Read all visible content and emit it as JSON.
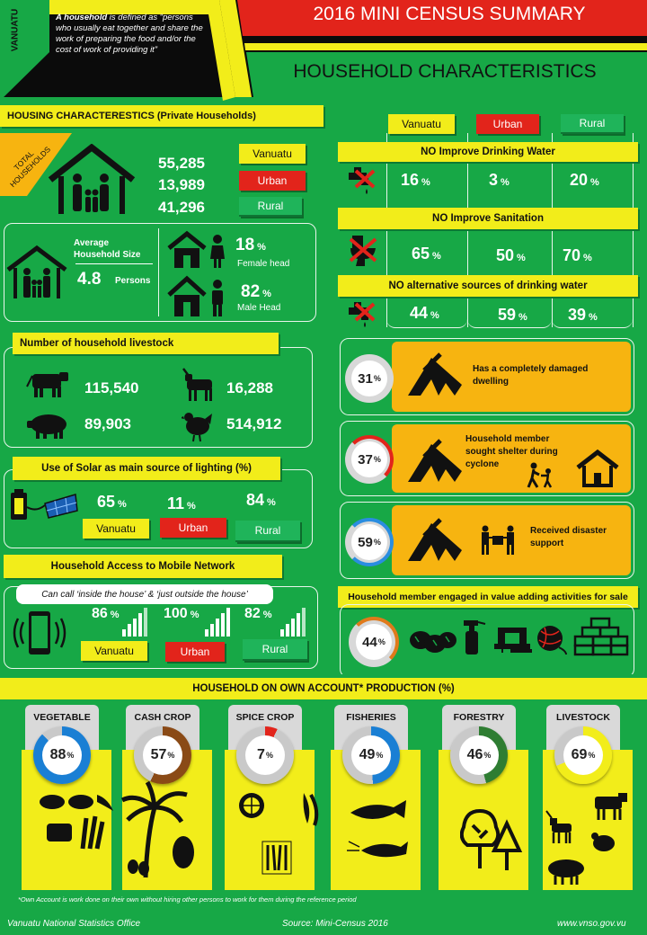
{
  "header": {
    "country_tag": "VANUATU",
    "definition_bold": "A household",
    "definition_rest": " is defined as “persons who usually eat together and share the work of preparing the food and/or the cost of work of providing it”",
    "title": "2016 MINI CENSUS SUMMARY",
    "subtitle": "HOUSEHOLD CHARACTERISTICS"
  },
  "housing": {
    "title": "HOUSING CHARACTERESTICS  (Private Households)",
    "total_label": "TOTAL HOUSEHOLDS",
    "totals": [
      {
        "value": "55,285",
        "label": "Vanuatu"
      },
      {
        "value": "13,989",
        "label": "Urban"
      },
      {
        "value": "41,296",
        "label": "Rural"
      }
    ],
    "avg_label": "Average Household Size",
    "avg_value": "4.8",
    "avg_unit": "Persons",
    "female_pct": "18",
    "female_label": "Female head",
    "male_pct": "82",
    "male_label": "Male Head"
  },
  "livestock": {
    "title": "Number of household livestock",
    "items": [
      {
        "icon": "cow-icon",
        "value": "115,540"
      },
      {
        "icon": "goat-icon",
        "value": "16,288"
      },
      {
        "icon": "pig-icon",
        "value": "89,903"
      },
      {
        "icon": "chicken-icon",
        "value": "514,912"
      }
    ]
  },
  "solar": {
    "title": "Use of Solar as main source of lighting (%)",
    "values": [
      {
        "value": "65",
        "label": "Vanuatu"
      },
      {
        "value": "11",
        "label": "Urban"
      },
      {
        "value": "84",
        "label": "Rural"
      }
    ]
  },
  "mobile": {
    "title": "Household Access to Mobile Network",
    "note": "Can call ‘inside the house’ & ‘just outside the house’",
    "values": [
      {
        "value": "86",
        "label": "Vanuatu"
      },
      {
        "value": "100",
        "label": "Urban"
      },
      {
        "value": "82",
        "label": "Rural"
      }
    ]
  },
  "legend": {
    "vanuatu": "Vanuatu",
    "urban": "Urban",
    "rural": "Rural"
  },
  "water": [
    {
      "title": "NO Improve Drinking Water",
      "values": [
        "16",
        "3",
        "20"
      ]
    },
    {
      "title": "NO  Improve Sanitation",
      "values": [
        "65",
        "50",
        "70"
      ]
    },
    {
      "title": "NO alternative sources of drinking water",
      "values": [
        "44",
        "59",
        "39"
      ]
    }
  ],
  "cyclone": [
    {
      "value": "31",
      "text": "Has a completely damaged dwelling"
    },
    {
      "value": "37",
      "text": "Household member sought shelter during cyclone"
    },
    {
      "value": "59",
      "text": "Received disaster support"
    }
  ],
  "value_adding": {
    "title": "Household member engaged in value adding activities for sale",
    "value": "44"
  },
  "production": {
    "title": "HOUSEHOLD  ON OWN ACCOUNT* PRODUCTION (%)",
    "items": [
      {
        "label": "VEGETABLE",
        "value": "88",
        "color": "#1a7fd4"
      },
      {
        "label": "CASH CROP",
        "value": "57",
        "color": "#8a4a16"
      },
      {
        "label": "SPICE CROP",
        "value": "7",
        "color": "#e2241b"
      },
      {
        "label": "FISHERIES",
        "value": "49",
        "color": "#1a7fd4"
      },
      {
        "label": "FORESTRY",
        "value": "46",
        "color": "#2e7d32"
      },
      {
        "label": "LIVESTOCK",
        "value": "69",
        "color": "#f2ed1a"
      }
    ],
    "footnote": "*Own Account is work done on their own without hiring other persons to work for them during the reference period"
  },
  "pct_sign": "%",
  "footer": {
    "left": "Vanuatu National Statistics Office",
    "center": "Source: Mini-Census 2016",
    "right": "www.vnso.gov.vu"
  },
  "colors": {
    "green": "#17a846",
    "yellow": "#f2ed1a",
    "red": "#e2241b",
    "orange": "#f7b410"
  }
}
